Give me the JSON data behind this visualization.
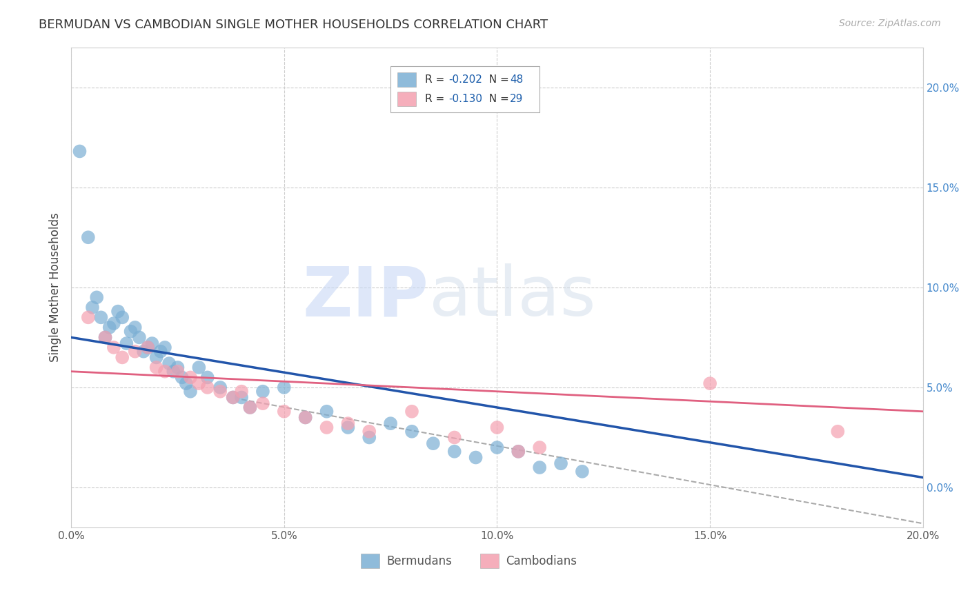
{
  "title": "BERMUDAN VS CAMBODIAN SINGLE MOTHER HOUSEHOLDS CORRELATION CHART",
  "source": "Source: ZipAtlas.com",
  "xlabel": "",
  "ylabel": "Single Mother Households",
  "xlim": [
    0.0,
    0.2
  ],
  "ylim": [
    -0.02,
    0.22
  ],
  "xticks": [
    0.0,
    0.05,
    0.1,
    0.15,
    0.2
  ],
  "yticks_right": [
    0.0,
    0.05,
    0.1,
    0.15,
    0.2
  ],
  "bermudan_color": "#7bafd4",
  "cambodian_color": "#f4a0b0",
  "bermudan_line_color": "#2255aa",
  "cambodian_line_color": "#e06080",
  "dashed_line_color": "#aaaaaa",
  "background_color": "#ffffff",
  "grid_color": "#cccccc",
  "legend_accent_color": "#1a5caa",
  "watermark_zip_color": "#c8d8f5",
  "watermark_atlas_color": "#d0dcea",
  "bermudan_x": [
    0.002,
    0.004,
    0.005,
    0.006,
    0.007,
    0.008,
    0.009,
    0.01,
    0.011,
    0.012,
    0.013,
    0.014,
    0.015,
    0.016,
    0.017,
    0.018,
    0.019,
    0.02,
    0.021,
    0.022,
    0.023,
    0.024,
    0.025,
    0.026,
    0.027,
    0.028,
    0.03,
    0.032,
    0.035,
    0.038,
    0.04,
    0.042,
    0.045,
    0.05,
    0.055,
    0.06,
    0.065,
    0.07,
    0.075,
    0.08,
    0.085,
    0.09,
    0.095,
    0.1,
    0.105,
    0.11,
    0.115,
    0.12
  ],
  "bermudan_y": [
    0.168,
    0.125,
    0.09,
    0.095,
    0.085,
    0.075,
    0.08,
    0.082,
    0.088,
    0.085,
    0.072,
    0.078,
    0.08,
    0.075,
    0.068,
    0.07,
    0.072,
    0.065,
    0.068,
    0.07,
    0.062,
    0.058,
    0.06,
    0.055,
    0.052,
    0.048,
    0.06,
    0.055,
    0.05,
    0.045,
    0.045,
    0.04,
    0.048,
    0.05,
    0.035,
    0.038,
    0.03,
    0.025,
    0.032,
    0.028,
    0.022,
    0.018,
    0.015,
    0.02,
    0.018,
    0.01,
    0.012,
    0.008
  ],
  "cambodian_x": [
    0.004,
    0.008,
    0.01,
    0.012,
    0.015,
    0.018,
    0.02,
    0.022,
    0.025,
    0.028,
    0.03,
    0.032,
    0.035,
    0.038,
    0.04,
    0.042,
    0.045,
    0.05,
    0.055,
    0.06,
    0.065,
    0.07,
    0.08,
    0.09,
    0.1,
    0.105,
    0.11,
    0.15,
    0.18
  ],
  "cambodian_y": [
    0.085,
    0.075,
    0.07,
    0.065,
    0.068,
    0.07,
    0.06,
    0.058,
    0.058,
    0.055,
    0.052,
    0.05,
    0.048,
    0.045,
    0.048,
    0.04,
    0.042,
    0.038,
    0.035,
    0.03,
    0.032,
    0.028,
    0.038,
    0.025,
    0.03,
    0.018,
    0.02,
    0.052,
    0.028
  ],
  "bermudan_trend_x": [
    0.0,
    0.2
  ],
  "bermudan_trend_y": [
    0.075,
    0.005
  ],
  "cambodian_trend_x": [
    0.0,
    0.2
  ],
  "cambodian_trend_y": [
    0.058,
    0.038
  ],
  "dashed_trend_x": [
    0.04,
    0.2
  ],
  "dashed_trend_y": [
    0.044,
    -0.018
  ],
  "legend_r1_val": "-0.202",
  "legend_n1_val": "48",
  "legend_r2_val": "-0.130",
  "legend_n2_val": "29",
  "bottom_label1": "Bermudans",
  "bottom_label2": "Cambodians"
}
